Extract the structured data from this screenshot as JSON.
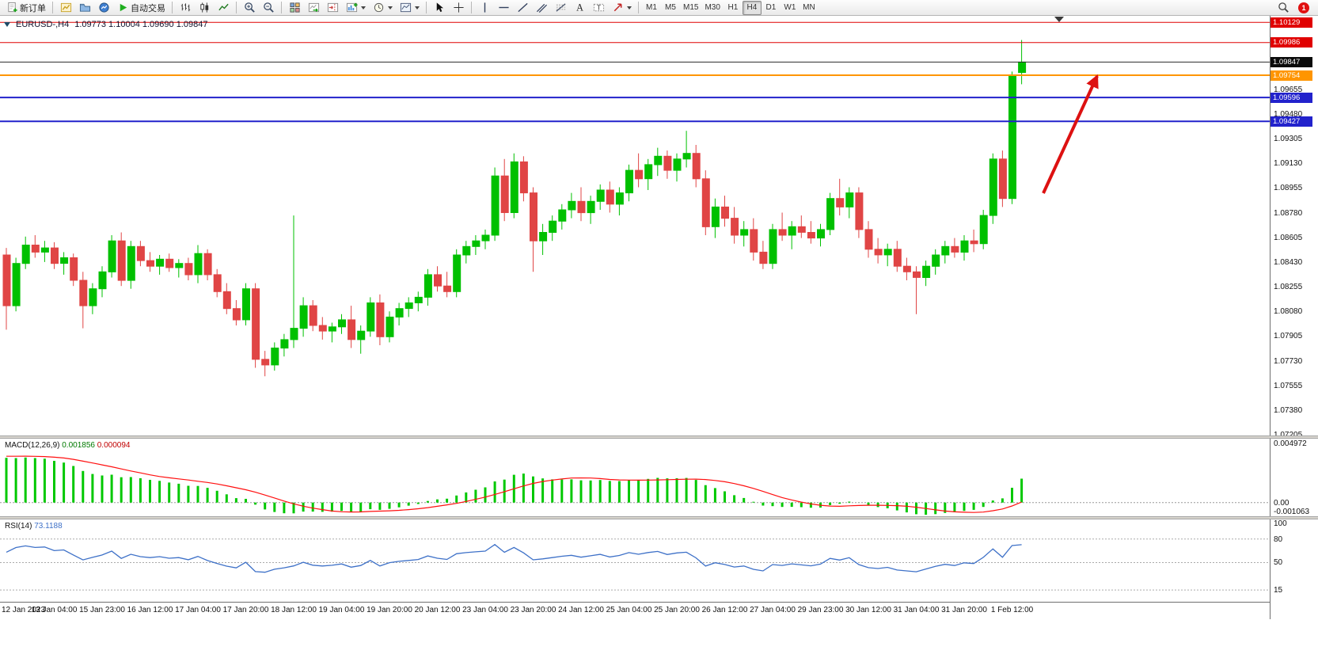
{
  "toolbar": {
    "notification_count": "1",
    "items": [
      {
        "type": "button",
        "name": "new-order-button",
        "icon": "new-order-icon",
        "label": "新订单"
      },
      {
        "type": "sep"
      },
      {
        "type": "button",
        "name": "new-chart-button",
        "icon": "new-chart-icon"
      },
      {
        "type": "button",
        "name": "profiles-button",
        "icon": "profiles-icon"
      },
      {
        "type": "button",
        "name": "market-watch-button",
        "icon": "market-watch-icon"
      },
      {
        "type": "button",
        "name": "autotrading-button",
        "icon": "autotrading-icon",
        "label": "自动交易"
      },
      {
        "type": "sep"
      },
      {
        "type": "button",
        "name": "bar-chart-button",
        "icon": "bars-icon"
      },
      {
        "type": "button",
        "name": "candlestick-chart-button",
        "icon": "candles-icon"
      },
      {
        "type": "button",
        "name": "line-chart-button",
        "icon": "line-chart-icon"
      },
      {
        "type": "sep"
      },
      {
        "type": "button",
        "name": "zoom-in-button",
        "icon": "zoom-in-icon"
      },
      {
        "type": "button",
        "name": "zoom-out-button",
        "icon": "zoom-out-icon"
      },
      {
        "type": "sep"
      },
      {
        "type": "button",
        "name": "tile-windows-button",
        "icon": "tile-windows-icon"
      },
      {
        "type": "button",
        "name": "auto-scroll-button",
        "icon": "auto-scroll-icon"
      },
      {
        "type": "button",
        "name": "chart-shift-button",
        "icon": "chart-shift-icon"
      },
      {
        "type": "button",
        "name": "indicators-button",
        "icon": "indicators-icon",
        "dropdown": true
      },
      {
        "type": "button",
        "name": "periods-button",
        "icon": "clock-icon",
        "dropdown": true
      },
      {
        "type": "button",
        "name": "templates-button",
        "icon": "template-icon",
        "dropdown": true
      },
      {
        "type": "sep"
      },
      {
        "type": "button",
        "name": "cursor-button",
        "icon": "cursor-icon"
      },
      {
        "type": "button",
        "name": "crosshair-button",
        "icon": "crosshair-icon"
      },
      {
        "type": "sep"
      },
      {
        "type": "button",
        "name": "vertical-line-button",
        "icon": "vline-icon"
      },
      {
        "type": "button",
        "name": "horizontal-line-button",
        "icon": "hline-icon"
      },
      {
        "type": "button",
        "name": "trendline-button",
        "icon": "trendline-icon"
      },
      {
        "type": "button",
        "name": "channel-button",
        "icon": "channel-icon"
      },
      {
        "type": "button",
        "name": "fibonacci-button",
        "icon": "fibonacci-icon"
      },
      {
        "type": "button",
        "name": "text-button",
        "icon": "text-icon"
      },
      {
        "type": "button",
        "name": "text-label-button",
        "icon": "text-label-icon"
      },
      {
        "type": "button",
        "name": "arrows-button",
        "icon": "arrow-shape-icon",
        "dropdown": true
      },
      {
        "type": "sep"
      },
      {
        "type": "button",
        "name": "timeframe-m1-button",
        "label": "M1",
        "tf": true
      },
      {
        "type": "button",
        "name": "timeframe-m5-button",
        "label": "M5",
        "tf": true
      },
      {
        "type": "button",
        "name": "timeframe-m15-button",
        "label": "M15",
        "tf": true
      },
      {
        "type": "button",
        "name": "timeframe-m30-button",
        "label": "M30",
        "tf": true
      },
      {
        "type": "button",
        "name": "timeframe-h1-button",
        "label": "H1",
        "tf": true
      },
      {
        "type": "button",
        "name": "timeframe-h4-button",
        "label": "H4",
        "tf": true,
        "active": true
      },
      {
        "type": "button",
        "name": "timeframe-d1-button",
        "label": "D1",
        "tf": true
      },
      {
        "type": "button",
        "name": "timeframe-w1-button",
        "label": "W1",
        "tf": true
      },
      {
        "type": "button",
        "name": "timeframe-mn-button",
        "label": "MN",
        "tf": true
      }
    ]
  },
  "macd_panel": {
    "name": "MACD(12,26,9)",
    "value_main": "0.001856",
    "value_signal": "0.000094"
  },
  "rsi_panel": {
    "name": "RSI(14)",
    "value": "73.1188"
  },
  "chart_data": {
    "type": "candlestick",
    "symbol": "EURUSD",
    "timeframe": "H4",
    "title_symbol": "EURUSD-,H4",
    "title_ohlc": "1.09773 1.10004 1.09690 1.09847",
    "price_range": [
      1.072,
      1.10175
    ],
    "up_color": "#00c000",
    "down_color": "#e04545",
    "bars_per_label": 5,
    "time_labels": [
      "12 Jan 2023",
      "13 Jan 04:00",
      "15 Jan 23:00",
      "16 Jan 12:00",
      "17 Jan 04:00",
      "17 Jan 20:00",
      "18 Jan 12:00",
      "19 Jan 04:00",
      "19 Jan 20:00",
      "20 Jan 12:00",
      "23 Jan 04:00",
      "23 Jan 20:00",
      "24 Jan 12:00",
      "25 Jan 04:00",
      "25 Jan 20:00",
      "26 Jan 12:00",
      "27 Jan 04:00",
      "29 Jan 23:00",
      "30 Jan 12:00",
      "31 Jan 04:00",
      "31 Jan 20:00",
      "1 Feb 12:00"
    ],
    "price_ticks": [
      "1.09655",
      "1.09480",
      "1.09305",
      "1.09130",
      "1.08955",
      "1.08780",
      "1.08605",
      "1.08430",
      "1.08255",
      "1.08080",
      "1.07905",
      "1.07730",
      "1.07555",
      "1.07380",
      "1.07205"
    ],
    "horizontal_lines": [
      {
        "label": "1.10129",
        "price": 1.10129,
        "color": "#e00000",
        "width": 1,
        "badge": "#e00000"
      },
      {
        "label": "1.09986",
        "price": 1.09986,
        "color": "#e00000",
        "width": 1,
        "badge": "#e00000"
      },
      {
        "label": "1.09847",
        "price": 1.09847,
        "color": "#2b2b2b",
        "width": 1,
        "badge": "#0a0a0a"
      },
      {
        "label": "1.09754",
        "price": 1.09754,
        "color": "#ff9500",
        "width": 2,
        "badge": "#ff9500"
      },
      {
        "label": "1.09596",
        "price": 1.09596,
        "color": "#2222cc",
        "width": 2,
        "badge": "#2222cc"
      },
      {
        "label": "1.09427",
        "price": 1.09427,
        "color": "#2222cc",
        "width": 2,
        "badge": "#2222cc"
      }
    ],
    "annotation_arrow": {
      "from": [
        1318,
        224
      ],
      "to": [
        1386,
        76
      ],
      "color": "#dd1111"
    },
    "indicators": [
      {
        "type": "MACD",
        "params": [
          12,
          26,
          9
        ],
        "display_main": "0.001856",
        "display_signal": "0.000094",
        "axis_labels": [
          "0.004972",
          "0.00",
          "-0.001063"
        ],
        "range": [
          -0.001063,
          0.004972
        ],
        "histogram_color": "#00c800",
        "signal_color": "#ff1010"
      },
      {
        "type": "RSI",
        "params": [
          14
        ],
        "display_value": "73.1188",
        "axis_labels": [
          "100",
          "80",
          "50",
          "15"
        ],
        "levels": [
          80,
          50,
          15
        ],
        "range": [
          0,
          105
        ],
        "line_color": "#3e71c8"
      }
    ],
    "ohlc": [
      [
        1.0848,
        1.0853,
        1.0795,
        1.0812
      ],
      [
        1.0812,
        1.0846,
        1.0808,
        1.0842
      ],
      [
        1.0842,
        1.0861,
        1.0838,
        1.0855
      ],
      [
        1.0855,
        1.0862,
        1.0846,
        1.085
      ],
      [
        1.085,
        1.0858,
        1.0843,
        1.0853
      ],
      [
        1.0853,
        1.0857,
        1.0838,
        1.0842
      ],
      [
        1.0842,
        1.085,
        1.0834,
        1.0846
      ],
      [
        1.0846,
        1.0849,
        1.0826,
        1.083
      ],
      [
        1.083,
        1.0836,
        1.0796,
        1.0812
      ],
      [
        1.0812,
        1.0828,
        1.0806,
        1.0824
      ],
      [
        1.0824,
        1.084,
        1.0818,
        1.0836
      ],
      [
        1.0836,
        1.0862,
        1.0832,
        1.0858
      ],
      [
        1.0858,
        1.0864,
        1.0826,
        1.083
      ],
      [
        1.083,
        1.0858,
        1.0824,
        1.0854
      ],
      [
        1.0854,
        1.0858,
        1.084,
        1.0844
      ],
      [
        1.0844,
        1.085,
        1.0836,
        1.084
      ],
      [
        1.084,
        1.0848,
        1.0834,
        1.0845
      ],
      [
        1.0845,
        1.0849,
        1.0836,
        1.0839
      ],
      [
        1.0839,
        1.0845,
        1.0832,
        1.0842
      ],
      [
        1.0842,
        1.0846,
        1.083,
        1.0834
      ],
      [
        1.0834,
        1.0855,
        1.0828,
        1.0849
      ],
      [
        1.0849,
        1.0852,
        1.083,
        1.0834
      ],
      [
        1.0834,
        1.0838,
        1.0818,
        1.0822
      ],
      [
        1.0822,
        1.0828,
        1.0806,
        1.081
      ],
      [
        1.081,
        1.0816,
        1.0798,
        1.0802
      ],
      [
        1.0802,
        1.0828,
        1.0798,
        1.0824
      ],
      [
        1.0824,
        1.0828,
        1.0768,
        1.0774
      ],
      [
        1.0774,
        1.078,
        1.0762,
        1.077
      ],
      [
        1.077,
        1.0786,
        1.0766,
        1.0782
      ],
      [
        1.0782,
        1.0792,
        1.0776,
        1.0788
      ],
      [
        1.0788,
        1.0876,
        1.0782,
        1.0796
      ],
      [
        1.0796,
        1.0818,
        1.079,
        1.0812
      ],
      [
        1.0812,
        1.0816,
        1.0794,
        1.0798
      ],
      [
        1.0798,
        1.0804,
        1.0788,
        1.0794
      ],
      [
        1.0794,
        1.08,
        1.0786,
        1.0797
      ],
      [
        1.0797,
        1.0806,
        1.0792,
        1.0802
      ],
      [
        1.0802,
        1.0812,
        1.0782,
        1.0788
      ],
      [
        1.0788,
        1.0798,
        1.0778,
        1.0794
      ],
      [
        1.0794,
        1.0818,
        1.079,
        1.0814
      ],
      [
        1.0814,
        1.082,
        1.0784,
        1.079
      ],
      [
        1.079,
        1.0808,
        1.0786,
        1.0804
      ],
      [
        1.0804,
        1.0814,
        1.0798,
        1.081
      ],
      [
        1.081,
        1.0818,
        1.0804,
        1.0814
      ],
      [
        1.0814,
        1.0822,
        1.0808,
        1.0818
      ],
      [
        1.0818,
        1.0838,
        1.0812,
        1.0834
      ],
      [
        1.0834,
        1.084,
        1.0822,
        1.0826
      ],
      [
        1.0826,
        1.0836,
        1.0818,
        1.0822
      ],
      [
        1.0822,
        1.0852,
        1.0818,
        1.0848
      ],
      [
        1.0848,
        1.0858,
        1.0842,
        1.0854
      ],
      [
        1.0854,
        1.0862,
        1.0848,
        1.0858
      ],
      [
        1.0858,
        1.0866,
        1.0852,
        1.0862
      ],
      [
        1.0862,
        1.091,
        1.0858,
        1.0904
      ],
      [
        1.0904,
        1.0916,
        1.0872,
        1.0878
      ],
      [
        1.0878,
        1.092,
        1.0874,
        1.0914
      ],
      [
        1.0914,
        1.0918,
        1.0886,
        1.0892
      ],
      [
        1.0892,
        1.0896,
        1.0836,
        1.0858
      ],
      [
        1.0858,
        1.087,
        1.0848,
        1.0864
      ],
      [
        1.0864,
        1.0876,
        1.0858,
        1.0872
      ],
      [
        1.0872,
        1.0884,
        1.0866,
        1.088
      ],
      [
        1.088,
        1.0892,
        1.0874,
        1.0886
      ],
      [
        1.0886,
        1.0896,
        1.0872,
        1.0878
      ],
      [
        1.0878,
        1.089,
        1.087,
        1.0886
      ],
      [
        1.0886,
        1.0898,
        1.088,
        1.0894
      ],
      [
        1.0894,
        1.09,
        1.0878,
        1.0884
      ],
      [
        1.0884,
        1.0896,
        1.0876,
        1.0892
      ],
      [
        1.0892,
        1.0912,
        1.0886,
        1.0908
      ],
      [
        1.0908,
        1.092,
        1.0896,
        1.0902
      ],
      [
        1.0902,
        1.0916,
        1.0894,
        1.0912
      ],
      [
        1.0912,
        1.0924,
        1.0904,
        1.0918
      ],
      [
        1.0918,
        1.0922,
        1.0902,
        1.0908
      ],
      [
        1.0908,
        1.092,
        1.09,
        1.0916
      ],
      [
        1.0916,
        1.0936,
        1.091,
        1.092
      ],
      [
        1.092,
        1.0926,
        1.0896,
        1.0902
      ],
      [
        1.0902,
        1.0908,
        1.0862,
        1.0868
      ],
      [
        1.0868,
        1.0888,
        1.086,
        1.0882
      ],
      [
        1.0882,
        1.089,
        1.0868,
        1.0874
      ],
      [
        1.0874,
        1.0882,
        1.0856,
        1.0862
      ],
      [
        1.0862,
        1.0872,
        1.0854,
        1.0866
      ],
      [
        1.0866,
        1.0874,
        1.0844,
        1.085
      ],
      [
        1.085,
        1.0858,
        1.0838,
        1.0842
      ],
      [
        1.0842,
        1.087,
        1.0838,
        1.0866
      ],
      [
        1.0866,
        1.0878,
        1.0858,
        1.0862
      ],
      [
        1.0862,
        1.0872,
        1.0852,
        1.0868
      ],
      [
        1.0868,
        1.0876,
        1.086,
        1.0864
      ],
      [
        1.0864,
        1.0872,
        1.0856,
        1.086
      ],
      [
        1.086,
        1.087,
        1.0854,
        1.0866
      ],
      [
        1.0866,
        1.0892,
        1.0862,
        1.0888
      ],
      [
        1.0888,
        1.0902,
        1.0876,
        1.0882
      ],
      [
        1.0882,
        1.0896,
        1.0874,
        1.0892
      ],
      [
        1.0892,
        1.0896,
        1.086,
        1.0866
      ],
      [
        1.0866,
        1.0872,
        1.0846,
        1.0852
      ],
      [
        1.0852,
        1.086,
        1.0842,
        1.0848
      ],
      [
        1.0848,
        1.0856,
        1.084,
        1.0852
      ],
      [
        1.0852,
        1.0858,
        1.0836,
        1.084
      ],
      [
        1.084,
        1.0846,
        1.083,
        1.0836
      ],
      [
        1.0836,
        1.084,
        1.0806,
        1.0832
      ],
      [
        1.0832,
        1.0844,
        1.0826,
        1.084
      ],
      [
        1.084,
        1.0852,
        1.0834,
        1.0848
      ],
      [
        1.0848,
        1.0858,
        1.0842,
        1.0854
      ],
      [
        1.0854,
        1.086,
        1.0846,
        1.085
      ],
      [
        1.085,
        1.0862,
        1.0844,
        1.0858
      ],
      [
        1.0858,
        1.0866,
        1.085,
        1.0856
      ],
      [
        1.0856,
        1.088,
        1.0852,
        1.0876
      ],
      [
        1.0876,
        1.092,
        1.087,
        1.0916
      ],
      [
        1.0916,
        1.0922,
        1.0882,
        1.0888
      ],
      [
        1.0888,
        1.0978,
        1.0884,
        1.0975
      ],
      [
        1.09773,
        1.10004,
        1.0969,
        1.09847
      ]
    ]
  }
}
